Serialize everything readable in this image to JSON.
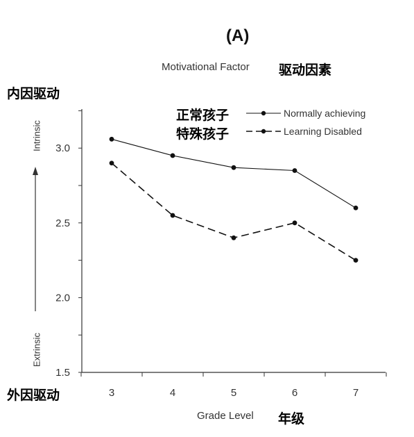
{
  "chart_data": {
    "type": "line",
    "panel_label": "(A)",
    "title": "Motivational Factor",
    "title_zh": "驱动因素",
    "xlabel": "Grade Level",
    "xlabel_zh": "年级",
    "categories": [
      "3",
      "4",
      "5",
      "6",
      "7"
    ],
    "ylim": [
      1.5,
      3.25
    ],
    "yticks": [
      "1.5",
      "2.0",
      "2.5",
      "3.0"
    ],
    "y_top_label": "Intrinsic",
    "y_bottom_label": "Extrinsic",
    "y_top_label_zh": "内因驱动",
    "y_bottom_label_zh": "外因驱动",
    "legend_position": "top-right",
    "series": [
      {
        "name": "Normally achieving",
        "name_zh": "正常孩子",
        "style": "solid",
        "values": [
          3.06,
          2.95,
          2.87,
          2.85,
          2.6
        ]
      },
      {
        "name": "Learning Disabled",
        "name_zh": "特殊孩子",
        "style": "dashed",
        "values": [
          2.9,
          2.55,
          2.4,
          2.5,
          2.25
        ]
      }
    ],
    "colors": {
      "line": "#111111",
      "axis": "#333333"
    }
  }
}
